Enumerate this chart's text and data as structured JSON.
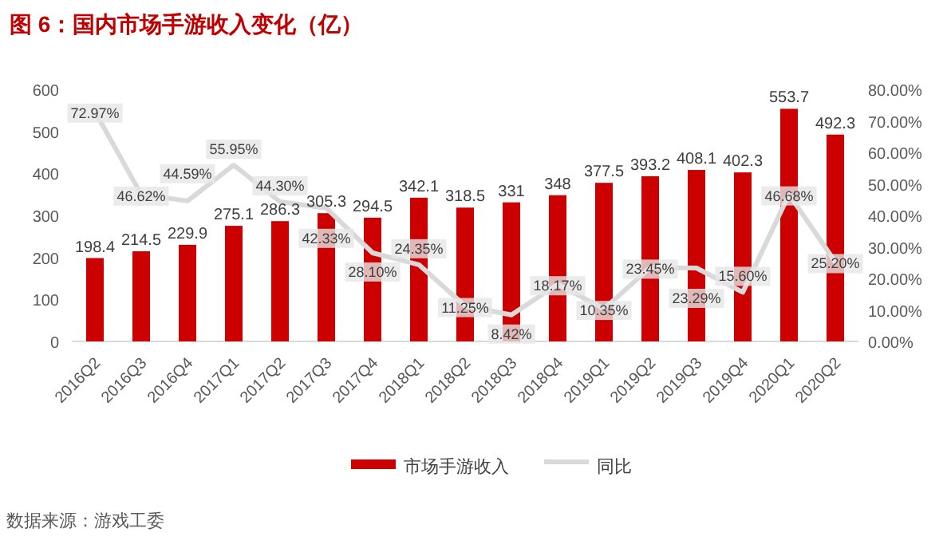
{
  "chart_data": {
    "type": "bar",
    "title": "图 6：国内市场手游收入变化（亿）",
    "categories": [
      "2016Q2",
      "2016Q3",
      "2016Q4",
      "2017Q1",
      "2017Q2",
      "2017Q3",
      "2017Q4",
      "2018Q1",
      "2018Q2",
      "2018Q3",
      "2018Q4",
      "2019Q1",
      "2019Q2",
      "2019Q3",
      "2019Q4",
      "2020Q1",
      "2020Q2"
    ],
    "series": [
      {
        "name": "市场手游收入",
        "color": "#cc0000",
        "values": [
          198.4,
          214.5,
          229.9,
          275.1,
          286.3,
          305.3,
          294.5,
          342.1,
          318.5,
          331,
          348,
          377.5,
          393.2,
          408.1,
          402.3,
          553.7,
          492.3
        ],
        "value_labels": [
          "198.4",
          "214.5",
          "229.9",
          "275.1",
          "286.3",
          "305.3",
          "294.5",
          "342.1",
          "318.5",
          "331",
          "348",
          "377.5",
          "393.2",
          "408.1",
          "402.3",
          "553.7",
          "492.3"
        ]
      },
      {
        "name": "同比",
        "type": "line",
        "axis": "y2",
        "color": "#d9d9d9",
        "values": [
          72.97,
          46.62,
          44.59,
          55.95,
          44.3,
          42.33,
          28.1,
          24.35,
          11.25,
          8.42,
          18.17,
          10.35,
          23.45,
          23.29,
          15.6,
          46.68,
          25.2
        ],
        "value_labels": [
          "72.97%",
          "46.62%",
          "44.59%",
          "55.95%",
          "44.30%",
          "42.33%",
          "28.10%",
          "24.35%",
          "11.25%",
          "8.42%",
          "18.17%",
          "10.35%",
          "23.45%",
          "23.29%",
          "15.60%",
          "46.68%",
          "25.20%"
        ]
      }
    ],
    "ylim": [
      0,
      600
    ],
    "yticks": [
      0,
      100,
      200,
      300,
      400,
      500,
      600
    ],
    "y2lim": [
      0,
      80
    ],
    "y2ticks": [
      {
        "value": 0,
        "label": "0.00%"
      },
      {
        "value": 10,
        "label": "10.00%"
      },
      {
        "value": 20,
        "label": "20.00%"
      },
      {
        "value": 30,
        "label": "30.00%"
      },
      {
        "value": 40,
        "label": "40.00%"
      },
      {
        "value": 50,
        "label": "50.00%"
      },
      {
        "value": 60,
        "label": "60.00%"
      },
      {
        "value": 70,
        "label": "70.00%"
      },
      {
        "value": 80,
        "label": "80.00%"
      }
    ],
    "grid": false,
    "legend": "bottom",
    "annotations": [
      "数据来源：游戏工委"
    ]
  }
}
